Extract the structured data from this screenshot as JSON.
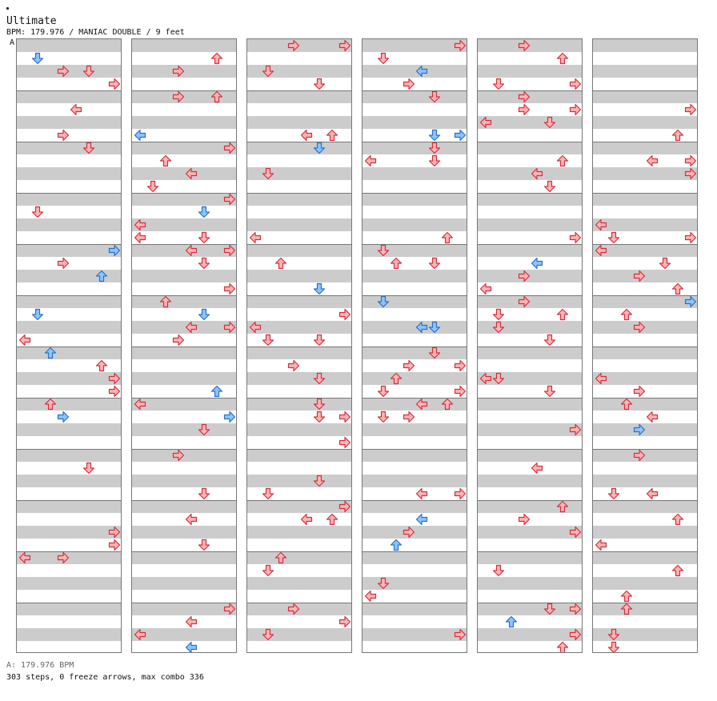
{
  "header": {
    "title": "Ultimate",
    "subtitle": "BPM: 179.976 / MANIAC DOUBLE / 9 feet",
    "bpm_marker": "A"
  },
  "footer": {
    "bpm_note": "A: 179.976 BPM",
    "stats": "303 steps, 0 freeze arrows, max combo 336"
  },
  "colors": {
    "normal_fill": "#ffb3b3",
    "normal_stroke": "#d03040",
    "alt_fill": "#8cc4ff",
    "alt_stroke": "#2a70c8",
    "band": "#cccccc"
  },
  "chart": {
    "panels": [
      "left-1P",
      "down-1P",
      "up-1P",
      "right-1P",
      "left-2P",
      "down-2P",
      "up-2P",
      "right-2P"
    ],
    "columns": [
      {
        "notes": [
          [
            4,
            4
          ],
          [
            4,
            7,
            "b"
          ],
          [
            4,
            7,
            "b",
            1
          ],
          [
            4,
            8
          ],
          [
            5,
            2
          ],
          [
            5,
            5
          ],
          [
            5,
            1
          ],
          [
            5,
            4
          ],
          [
            5,
            7
          ],
          [
            5,
            7,
            "b",
            1
          ],
          [
            5,
            5,
            "b",
            1
          ],
          [
            5,
            2
          ],
          [
            6,
            7,
            "b"
          ],
          [
            6,
            6
          ],
          [
            7,
            7
          ],
          [
            7,
            4
          ],
          [
            7,
            1
          ],
          [
            7,
            2
          ],
          [
            7,
            4
          ],
          [
            7,
            7
          ],
          [
            8,
            4
          ],
          [
            8,
            3
          ],
          [
            8,
            7
          ],
          [
            9,
            6
          ],
          [
            9,
            5
          ],
          [
            9,
            7
          ],
          [
            10,
            1
          ],
          [
            10,
            2
          ],
          [
            10,
            3
          ],
          [
            10,
            4
          ],
          [
            10,
            3
          ],
          [
            10,
            6
          ],
          [
            11,
            1
          ],
          [
            11,
            4
          ],
          [
            11,
            2
          ],
          [
            11,
            6
          ],
          [
            12,
            1
          ],
          [
            12,
            1
          ],
          [
            12,
            2
          ],
          [
            12,
            3
          ],
          [
            12,
            5,
            "b"
          ],
          [
            12,
            4
          ],
          [
            12,
            6
          ],
          [
            12,
            5
          ]
        ]
      }
    ]
  }
}
